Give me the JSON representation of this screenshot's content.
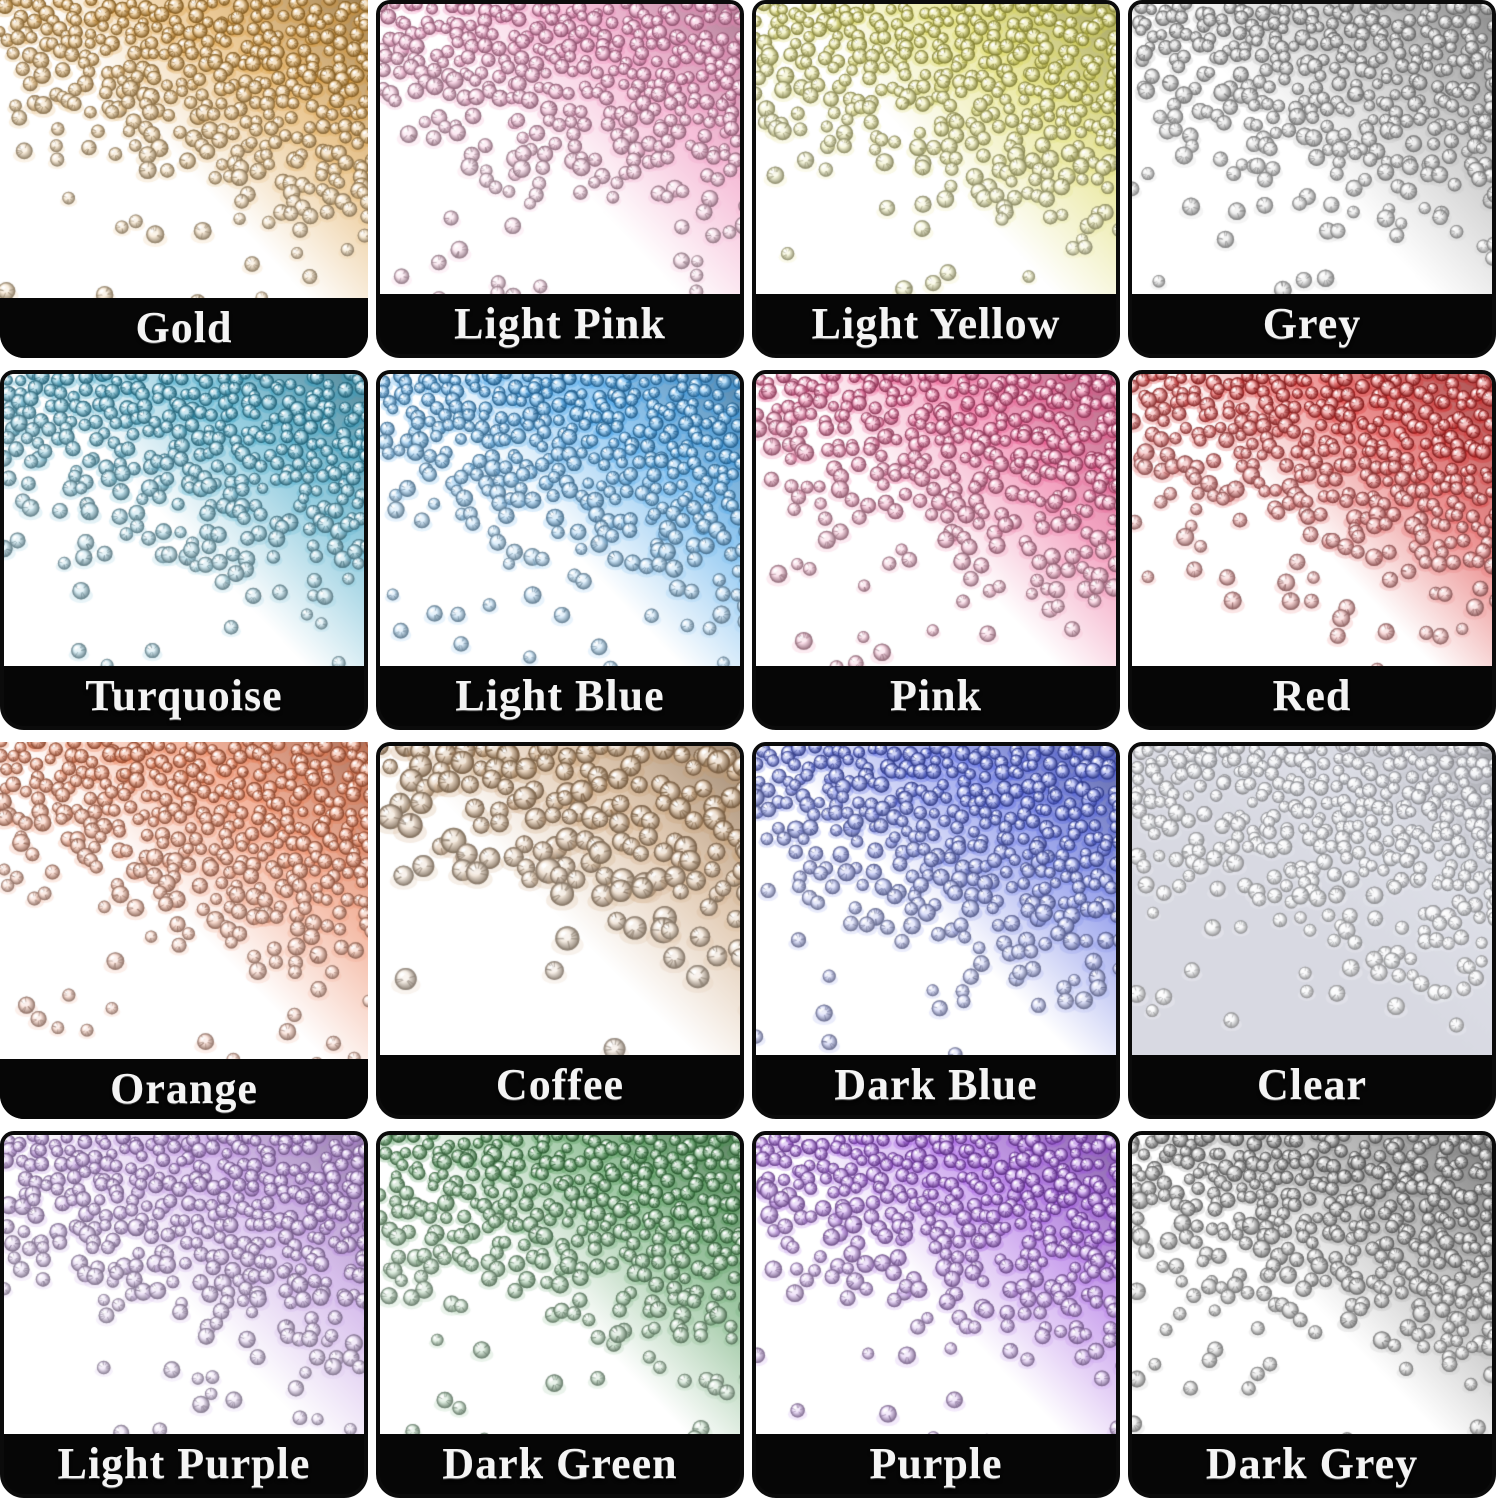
{
  "page": {
    "background_hex": "#ffffff",
    "label_bar_bg_hex": "#060606",
    "label_text_color_hex": "#f4f4f4"
  },
  "cells": [
    {
      "label": "Gold",
      "base_hex": "#d9952f",
      "bg_hex": "#ffffff"
    },
    {
      "label": "Light Pink",
      "base_hex": "#ee82b4",
      "bg_hex": "#ffffff"
    },
    {
      "label": "Light Yellow",
      "base_hex": "#d8d44c",
      "bg_hex": "#ffffff"
    },
    {
      "label": "Grey",
      "base_hex": "#a2a2a2",
      "bg_hex": "#ffffff"
    },
    {
      "label": "Turquoise",
      "base_hex": "#2e9ec2",
      "bg_hex": "#ffffff"
    },
    {
      "label": "Light Blue",
      "base_hex": "#2e97e6",
      "bg_hex": "#ffffff"
    },
    {
      "label": "Pink",
      "base_hex": "#e84a85",
      "bg_hex": "#ffffff"
    },
    {
      "label": "Red",
      "base_hex": "#d92222",
      "bg_hex": "#ffffff"
    },
    {
      "label": "Orange",
      "base_hex": "#e96e41",
      "bg_hex": "#ffffff"
    },
    {
      "label": "Coffee",
      "base_hex": "#c79a6c",
      "bg_hex": "#ffffff",
      "gem_scale": 1.45,
      "density": 0.9
    },
    {
      "label": "Dark Blue",
      "base_hex": "#4557de",
      "bg_hex": "#ffffff"
    },
    {
      "label": "Clear",
      "base_hex": "#e2e4ec",
      "bg_hex": "#d8d9e2"
    },
    {
      "label": "Light Purple",
      "base_hex": "#b383dc",
      "bg_hex": "#ffffff"
    },
    {
      "label": "Dark Green",
      "base_hex": "#3f9149",
      "bg_hex": "#ffffff"
    },
    {
      "label": "Purple",
      "base_hex": "#9747dd",
      "bg_hex": "#ffffff"
    },
    {
      "label": "Dark Grey",
      "base_hex": "#828282",
      "bg_hex": "#ffffff",
      "density": 1.12
    }
  ]
}
